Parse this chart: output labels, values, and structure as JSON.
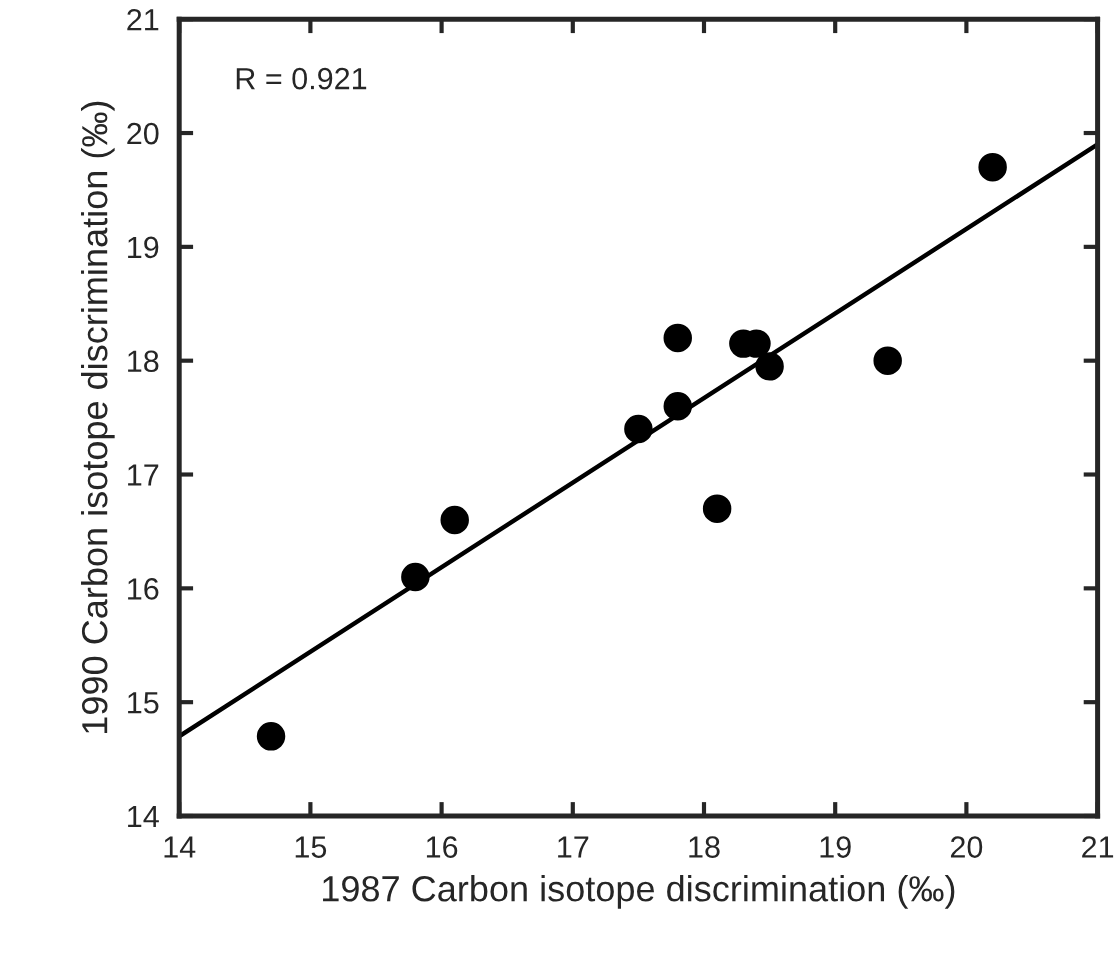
{
  "chart_data": {
    "type": "scatter",
    "xlabel": "1987 Carbon isotope discrimination (‰)",
    "ylabel": "1990 Carbon isotope discrimination (‰)",
    "annotations": [
      "R = 0.921"
    ],
    "xlim": [
      14,
      21
    ],
    "ylim": [
      14,
      21
    ],
    "xticks": [
      14,
      15,
      16,
      17,
      18,
      19,
      20,
      21
    ],
    "yticks": [
      14,
      15,
      16,
      17,
      18,
      19,
      20,
      21
    ],
    "grid": false,
    "series": [
      {
        "marker": "circle",
        "color": "#000000",
        "x": [
          14.7,
          15.8,
          16.1,
          17.5,
          17.8,
          17.8,
          18.1,
          18.3,
          18.4,
          18.5,
          19.4,
          20.2
        ],
        "values": [
          14.7,
          16.1,
          16.6,
          17.4,
          17.6,
          18.2,
          16.7,
          18.15,
          18.15,
          17.95,
          18.0,
          19.7
        ]
      },
      {
        "type": "line",
        "marker": "none",
        "color": "#000000",
        "line_style": "solid",
        "x": [
          14,
          21
        ],
        "values": [
          14.7,
          19.9
        ]
      }
    ]
  }
}
